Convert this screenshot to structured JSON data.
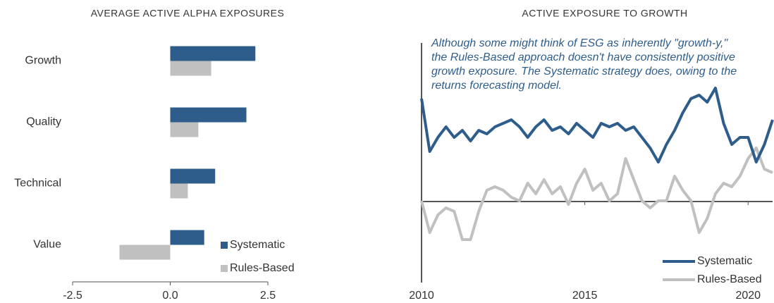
{
  "chart_data": [
    {
      "type": "barh",
      "title": "AVERAGE ACTIVE ALPHA EXPOSURES",
      "categories": [
        "Growth",
        "Quality",
        "Technical",
        "Value"
      ],
      "series": [
        {
          "name": "Systematic",
          "color": "#2e5d8b",
          "values": [
            2.18,
            1.95,
            1.15,
            0.87
          ]
        },
        {
          "name": "Rules-Based",
          "color": "#c0c0c0",
          "values": [
            1.05,
            0.72,
            0.45,
            -1.3
          ]
        }
      ],
      "xlim": [
        -2.5,
        2.5
      ],
      "xticks": [
        -2.5,
        {
          "value": 0,
          "label": "0.0"
        },
        2.5
      ],
      "legend": "lower right"
    },
    {
      "type": "line",
      "title": "ACTIVE EXPOSURE TO GROWTH",
      "annotation": [
        "Although some might think of ESG as inherently \"growth-y,\"",
        "the Rules-Based approach doesn't have consistently positive",
        "growth exposure. The Systematic strategy does, owing to the",
        "returns forecasting model."
      ],
      "x": [
        2010,
        2010.25,
        2010.5,
        2010.75,
        2011,
        2011.25,
        2011.5,
        2011.75,
        2012,
        2012.25,
        2012.5,
        2012.75,
        2013,
        2013.25,
        2013.5,
        2013.75,
        2014,
        2014.25,
        2014.5,
        2014.75,
        2015,
        2015.25,
        2015.5,
        2015.75,
        2016,
        2016.25,
        2016.5,
        2016.75,
        2017,
        2017.25,
        2017.5,
        2017.75,
        2018,
        2018.25,
        2018.5,
        2018.75,
        2019,
        2019.25,
        2019.5,
        2019.75,
        2020,
        2020.25,
        2020.5,
        2020.75
      ],
      "series": [
        {
          "name": "Systematic",
          "color": "#2e5d8b",
          "values": [
            1.46,
            0.71,
            0.91,
            1.06,
            0.91,
            1.01,
            0.86,
            1.01,
            0.96,
            1.06,
            1.11,
            1.16,
            1.06,
            0.91,
            1.06,
            1.16,
            1.01,
            1.06,
            0.96,
            1.11,
            1.01,
            0.91,
            1.11,
            1.06,
            1.11,
            1.01,
            1.06,
            0.91,
            0.76,
            0.56,
            0.81,
            1.01,
            1.26,
            1.46,
            1.51,
            1.41,
            1.61,
            1.11,
            0.81,
            0.91,
            0.91,
            0.56,
            0.81,
            1.16
          ]
        },
        {
          "name": "Rules-Based",
          "color": "#c0c0c0",
          "values": [
            0.01,
            -0.44,
            -0.19,
            -0.09,
            -0.14,
            -0.54,
            -0.54,
            -0.14,
            0.16,
            0.21,
            0.16,
            0.06,
            0.01,
            0.26,
            0.11,
            0.31,
            0.11,
            0.21,
            -0.04,
            0.26,
            0.46,
            0.16,
            0.26,
            0.01,
            0.11,
            0.61,
            0.31,
            0.01,
            -0.09,
            0.01,
            0.01,
            0.36,
            0.16,
            0.01,
            -0.44,
            -0.24,
            0.11,
            0.26,
            0.21,
            0.36,
            0.61,
            0.76,
            0.46,
            0.41
          ]
        }
      ],
      "xlim": [
        2010,
        2020.75
      ],
      "xticks": [
        2010,
        2015,
        2020
      ],
      "ylim": [
        -1.15,
        2.25
      ],
      "legend": "lower right"
    }
  ]
}
